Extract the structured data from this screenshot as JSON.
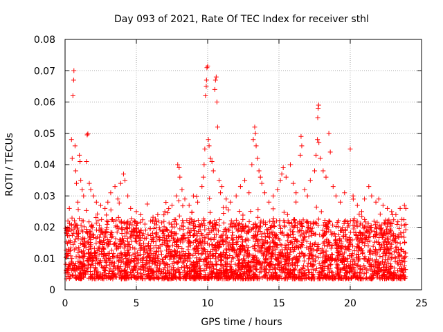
{
  "chart_data": {
    "type": "scatter",
    "title": "Day 093 of 2021, Rate Of TEC Index for receiver sthl",
    "xlabel": "GPS time / hours",
    "ylabel": "ROTI / TECUs",
    "xlim": [
      0,
      25
    ],
    "ylim": [
      0,
      0.08
    ],
    "grid": true,
    "x_ticks": [
      0,
      5,
      10,
      15,
      20,
      25
    ],
    "x_tick_labels": [
      "0",
      "5",
      "10",
      "15",
      "20",
      "25"
    ],
    "y_ticks": [
      0,
      0.01,
      0.02,
      0.03,
      0.04,
      0.05,
      0.06,
      0.07,
      0.08
    ],
    "y_tick_labels": [
      "0",
      "0.01",
      "0.02",
      "0.03",
      "0.04",
      "0.05",
      "0.06",
      "0.07",
      "0.08"
    ],
    "marker": "+",
    "marker_color": "#ff0000",
    "series": [
      {
        "name": "ROTI",
        "color": "#ff0000",
        "points": [
          [
            0.1,
            0.019
          ],
          [
            0.2,
            0.022
          ],
          [
            0.3,
            0.026
          ],
          [
            0.45,
            0.048
          ],
          [
            0.5,
            0.042
          ],
          [
            0.55,
            0.062
          ],
          [
            0.6,
            0.067
          ],
          [
            0.62,
            0.07
          ],
          [
            0.7,
            0.046
          ],
          [
            0.75,
            0.038
          ],
          [
            0.8,
            0.034
          ],
          [
            0.9,
            0.028
          ],
          [
            1.0,
            0.043
          ],
          [
            1.05,
            0.041
          ],
          [
            1.1,
            0.035
          ],
          [
            1.2,
            0.032
          ],
          [
            1.3,
            0.03
          ],
          [
            1.5,
            0.041
          ],
          [
            1.55,
            0.0495
          ],
          [
            1.6,
            0.0498
          ],
          [
            1.7,
            0.034
          ],
          [
            1.8,
            0.032
          ],
          [
            2.0,
            0.03
          ],
          [
            2.2,
            0.028
          ],
          [
            2.5,
            0.027
          ],
          [
            2.8,
            0.026
          ],
          [
            3.0,
            0.028
          ],
          [
            3.2,
            0.031
          ],
          [
            3.5,
            0.033
          ],
          [
            3.7,
            0.029
          ],
          [
            3.9,
            0.034
          ],
          [
            4.1,
            0.037
          ],
          [
            4.2,
            0.035
          ],
          [
            4.4,
            0.03
          ],
          [
            4.6,
            0.026
          ],
          [
            5.0,
            0.025
          ],
          [
            5.3,
            0.024
          ],
          [
            5.6,
            0.021
          ],
          [
            6.0,
            0.022
          ],
          [
            6.5,
            0.024
          ],
          [
            7.0,
            0.025
          ],
          [
            7.5,
            0.027
          ],
          [
            7.8,
            0.03
          ],
          [
            7.9,
            0.04
          ],
          [
            8.0,
            0.039
          ],
          [
            8.05,
            0.036
          ],
          [
            8.2,
            0.032
          ],
          [
            8.4,
            0.029
          ],
          [
            8.7,
            0.027
          ],
          [
            9.0,
            0.03
          ],
          [
            9.3,
            0.028
          ],
          [
            9.6,
            0.033
          ],
          [
            9.7,
            0.036
          ],
          [
            9.75,
            0.04
          ],
          [
            9.8,
            0.045
          ],
          [
            9.85,
            0.062
          ],
          [
            9.9,
            0.065
          ],
          [
            9.92,
            0.067
          ],
          [
            9.95,
            0.071
          ],
          [
            10.0,
            0.0715
          ],
          [
            10.05,
            0.048
          ],
          [
            10.1,
            0.046
          ],
          [
            10.2,
            0.042
          ],
          [
            10.3,
            0.041
          ],
          [
            10.4,
            0.038
          ],
          [
            10.5,
            0.064
          ],
          [
            10.55,
            0.067
          ],
          [
            10.6,
            0.068
          ],
          [
            10.65,
            0.06
          ],
          [
            10.7,
            0.052
          ],
          [
            10.8,
            0.035
          ],
          [
            10.9,
            0.031
          ],
          [
            11.0,
            0.033
          ],
          [
            11.3,
            0.029
          ],
          [
            11.6,
            0.028
          ],
          [
            12.0,
            0.03
          ],
          [
            12.3,
            0.033
          ],
          [
            12.6,
            0.035
          ],
          [
            12.9,
            0.031
          ],
          [
            13.1,
            0.04
          ],
          [
            13.2,
            0.048
          ],
          [
            13.3,
            0.052
          ],
          [
            13.35,
            0.05
          ],
          [
            13.4,
            0.046
          ],
          [
            13.5,
            0.042
          ],
          [
            13.6,
            0.038
          ],
          [
            13.7,
            0.036
          ],
          [
            13.8,
            0.034
          ],
          [
            14.0,
            0.031
          ],
          [
            14.3,
            0.028
          ],
          [
            14.6,
            0.03
          ],
          [
            14.9,
            0.032
          ],
          [
            15.1,
            0.035
          ],
          [
            15.2,
            0.037
          ],
          [
            15.3,
            0.039
          ],
          [
            15.5,
            0.036
          ],
          [
            15.8,
            0.04
          ],
          [
            16.0,
            0.034
          ],
          [
            16.2,
            0.031
          ],
          [
            16.5,
            0.043
          ],
          [
            16.55,
            0.049
          ],
          [
            16.6,
            0.046
          ],
          [
            16.8,
            0.032
          ],
          [
            17.0,
            0.03
          ],
          [
            17.2,
            0.035
          ],
          [
            17.5,
            0.038
          ],
          [
            17.6,
            0.043
          ],
          [
            17.7,
            0.048
          ],
          [
            17.72,
            0.055
          ],
          [
            17.75,
            0.058
          ],
          [
            17.78,
            0.059
          ],
          [
            17.8,
            0.047
          ],
          [
            17.9,
            0.042
          ],
          [
            18.1,
            0.038
          ],
          [
            18.3,
            0.036
          ],
          [
            18.5,
            0.05
          ],
          [
            18.6,
            0.044
          ],
          [
            18.8,
            0.033
          ],
          [
            19.0,
            0.03
          ],
          [
            19.3,
            0.028
          ],
          [
            19.6,
            0.031
          ],
          [
            20.0,
            0.045
          ],
          [
            20.2,
            0.03
          ],
          [
            20.5,
            0.027
          ],
          [
            20.8,
            0.025
          ],
          [
            21.0,
            0.029
          ],
          [
            21.3,
            0.033
          ],
          [
            21.5,
            0.03
          ],
          [
            21.8,
            0.028
          ],
          [
            22.0,
            0.029
          ],
          [
            22.3,
            0.027
          ],
          [
            22.6,
            0.026
          ],
          [
            22.9,
            0.025
          ],
          [
            23.2,
            0.024
          ],
          [
            23.5,
            0.026
          ],
          [
            23.8,
            0.027
          ],
          [
            23.9,
            0.026
          ]
        ]
      }
    ]
  }
}
